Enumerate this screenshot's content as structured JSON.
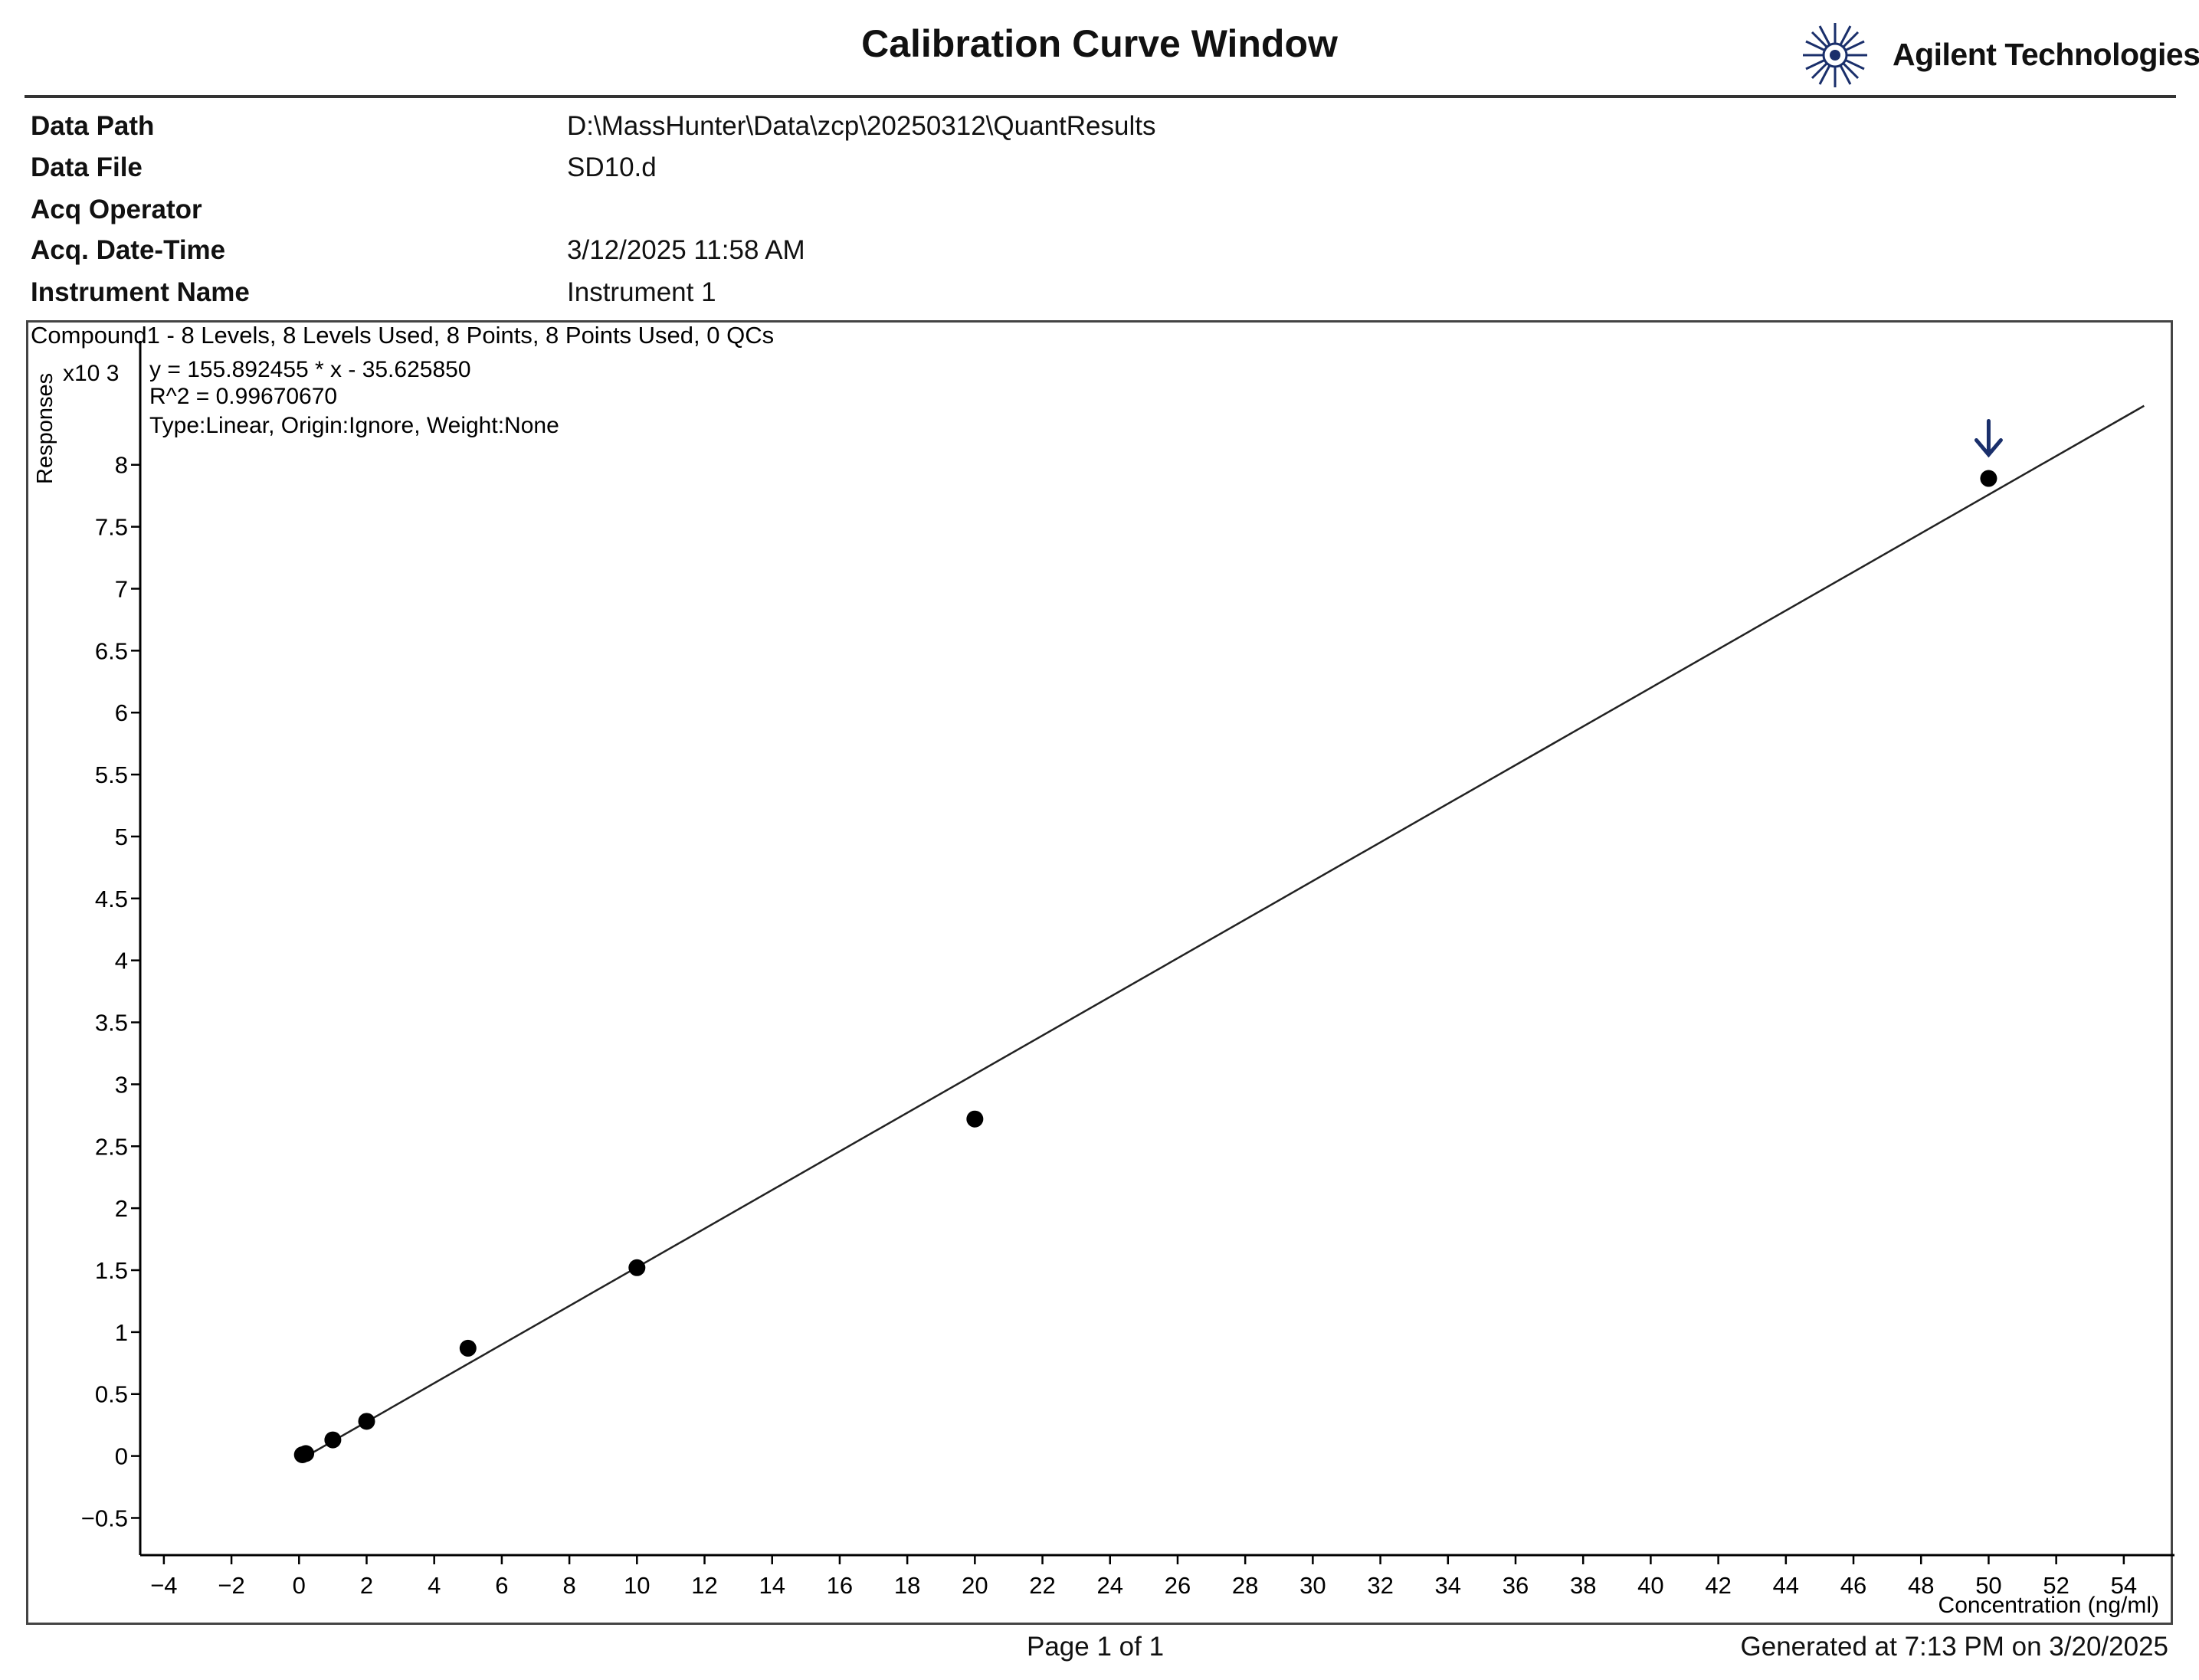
{
  "title": "Calibration Curve Window",
  "brand": {
    "name": "Agilent Technologies",
    "logo_icon": "agilent-spark-icon",
    "color": "#1a2f6b"
  },
  "meta": [
    {
      "label": "Data Path",
      "value": "D:\\MassHunter\\Data\\zcp\\20250312\\QuantResults"
    },
    {
      "label": "Data File",
      "value": "SD10.d"
    },
    {
      "label": "Acq Operator",
      "value": ""
    },
    {
      "label": "Acq. Date-Time",
      "value": "3/12/2025 11:58 AM"
    },
    {
      "label": "Instrument Name",
      "value": "Instrument 1"
    }
  ],
  "chart_header": "Compound1 - 8 Levels, 8 Levels Used, 8 Points, 8 Points Used, 0 QCs",
  "chart_data": {
    "type": "scatter",
    "ylabel": "Responses",
    "y_multiplier": "x10 3",
    "xlabel": "Concentration (ng/ml)",
    "annotations": [
      "y = 155.892455 * x  - 35.625850",
      "R^2 = 0.99670670",
      "Type:Linear, Origin:Ignore, Weight:None"
    ],
    "fit": {
      "slope": 155.892455,
      "intercept": -35.62585
    },
    "xlim": [
      -4.7,
      55.5
    ],
    "ylim": [
      -0.8,
      9.0
    ],
    "xticks": [
      -4,
      -2,
      0,
      2,
      4,
      6,
      8,
      10,
      12,
      14,
      16,
      18,
      20,
      22,
      24,
      26,
      28,
      30,
      32,
      34,
      36,
      38,
      40,
      42,
      44,
      46,
      48,
      50,
      52,
      54
    ],
    "xtick_labels": [
      "−4",
      "−2",
      "0",
      "2",
      "4",
      "6",
      "8",
      "10",
      "12",
      "14",
      "16",
      "18",
      "20",
      "22",
      "24",
      "26",
      "28",
      "30",
      "32",
      "34",
      "36",
      "38",
      "40",
      "42",
      "44",
      "46",
      "48",
      "50",
      "52",
      "54"
    ],
    "yticks": [
      -0.5,
      0,
      0.5,
      1,
      1.5,
      2,
      2.5,
      3,
      3.5,
      4,
      4.5,
      5,
      5.5,
      6,
      6.5,
      7,
      7.5,
      8
    ],
    "ytick_labels": [
      "−0.5",
      "0",
      "0.5",
      "1",
      "1.5",
      "2",
      "2.5",
      "3",
      "3.5",
      "4",
      "4.5",
      "5",
      "5.5",
      "6",
      "6.5",
      "7",
      "7.5",
      "8"
    ],
    "points": [
      {
        "x": 0.1,
        "y": 0.01
      },
      {
        "x": 0.2,
        "y": 0.02
      },
      {
        "x": 1,
        "y": 0.13
      },
      {
        "x": 2,
        "y": 0.28
      },
      {
        "x": 5,
        "y": 0.87
      },
      {
        "x": 10,
        "y": 1.52
      },
      {
        "x": 20,
        "y": 2.72
      },
      {
        "x": 50,
        "y": 7.89
      }
    ],
    "highlight_index": 7,
    "grid": false
  },
  "footer": {
    "page": "Page 1 of 1",
    "generated": "Generated at 7:13 PM on 3/20/2025"
  }
}
